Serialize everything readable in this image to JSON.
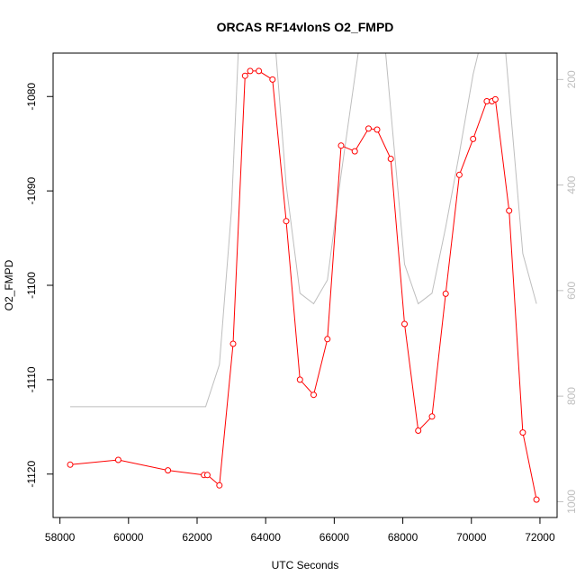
{
  "chart_data": {
    "type": "line",
    "title": "ORCAS RF14vlonS O2_FMPD",
    "xlabel": "UTC Seconds",
    "ylabel": "O2_FMPD",
    "xlim": [
      57800,
      72500
    ],
    "ylim": [
      -1124.6,
      -1075.4
    ],
    "y2lim": [
      1030,
      150
    ],
    "x_ticks": [
      58000,
      60000,
      62000,
      64000,
      66000,
      68000,
      70000,
      72000
    ],
    "y_ticks": [
      -1120,
      -1110,
      -1100,
      -1090,
      -1080
    ],
    "y2_ticks": [
      200,
      400,
      600,
      800,
      1000
    ],
    "grid": false,
    "legend": "none",
    "colors": {
      "primary": "#ff0000",
      "secondary": "#bebebe",
      "frame": "#000000"
    },
    "series": [
      {
        "axis": "left",
        "style": "line+circle",
        "points": [
          [
            58300,
            -1119.0
          ],
          [
            59700,
            -1118.5
          ],
          [
            61150,
            -1119.6
          ],
          [
            62200,
            -1120.1
          ],
          [
            62300,
            -1120.1
          ],
          [
            62650,
            -1121.2
          ],
          [
            63050,
            -1106.2
          ],
          [
            63400,
            -1077.8
          ],
          [
            63550,
            -1077.3
          ],
          [
            63800,
            -1077.3
          ],
          [
            64200,
            -1078.2
          ],
          [
            64600,
            -1093.2
          ],
          [
            65000,
            -1110.0
          ],
          [
            65400,
            -1111.6
          ],
          [
            65800,
            -1105.7
          ],
          [
            66200,
            -1085.2
          ],
          [
            66600,
            -1085.8
          ],
          [
            67000,
            -1083.4
          ],
          [
            67250,
            -1083.5
          ],
          [
            67650,
            -1086.6
          ],
          [
            68050,
            -1104.1
          ],
          [
            68450,
            -1115.4
          ],
          [
            68850,
            -1113.9
          ],
          [
            69250,
            -1100.9
          ],
          [
            69650,
            -1088.3
          ],
          [
            70050,
            -1084.5
          ],
          [
            70450,
            -1080.5
          ],
          [
            70600,
            -1080.5
          ],
          [
            70700,
            -1080.3
          ],
          [
            71100,
            -1092.1
          ],
          [
            71500,
            -1115.6
          ],
          [
            71900,
            -1122.7
          ]
        ]
      },
      {
        "axis": "right",
        "style": "line",
        "points": [
          [
            58300,
            820
          ],
          [
            62250,
            820
          ],
          [
            62650,
            740
          ],
          [
            63000,
            450
          ],
          [
            63200,
            150
          ],
          [
            64300,
            150
          ],
          [
            64600,
            400
          ],
          [
            65000,
            605
          ],
          [
            65400,
            625
          ],
          [
            65800,
            580
          ],
          [
            66200,
            380
          ],
          [
            66700,
            150
          ],
          [
            67500,
            150
          ],
          [
            68050,
            550
          ],
          [
            68450,
            625
          ],
          [
            68850,
            605
          ],
          [
            69250,
            480
          ],
          [
            69650,
            340
          ],
          [
            70050,
            190
          ],
          [
            70200,
            150
          ],
          [
            71000,
            150
          ],
          [
            71500,
            530
          ],
          [
            71900,
            625
          ]
        ]
      }
    ]
  }
}
